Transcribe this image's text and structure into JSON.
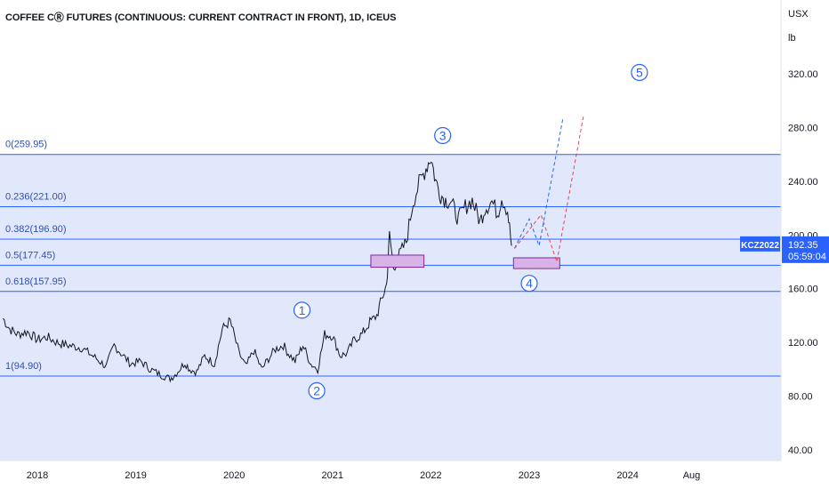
{
  "title": "COFFEE CⓇ FUTURES (CONTINUOUS: CURRENT CONTRACT IN FRONT), 1D, ICEUS",
  "price_axis": {
    "unit_top": "USX",
    "unit_bottom": "lb",
    "ticks": [
      "320.00",
      "280.00",
      "240.00",
      "200.00",
      "160.00",
      "120.00",
      "80.00",
      "40.00"
    ]
  },
  "time_axis": {
    "labels": [
      "2018",
      "2019",
      "2020",
      "2021",
      "2022",
      "2023",
      "2024",
      "Aug"
    ]
  },
  "price_tag": {
    "symbol": "KCZ2022",
    "price": "192.35",
    "countdown": "05:59:04",
    "color": "#2962ff"
  },
  "colors": {
    "fib_line": "#2962ff",
    "fib_band": "#e2e8fb",
    "fib_label": "#2f4fb0",
    "price_line": "#131722",
    "target_box_fill": "#d9b3e8",
    "target_box_stroke": "#7c2a9a",
    "projection_blue": "#2962ff",
    "projection_red": "#e0455a",
    "wave_label": "#2962ff"
  },
  "fib_levels": [
    {
      "label": "0(259.95)",
      "value": 259.95
    },
    {
      "label": "0.236(221.00)",
      "value": 221.0
    },
    {
      "label": "0.382(196.90)",
      "value": 196.9
    },
    {
      "label": "0.5(177.45)",
      "value": 177.45
    },
    {
      "label": "0.618(157.95)",
      "value": 157.95
    },
    {
      "label": "1(94.90)",
      "value": 94.9
    }
  ],
  "wave_labels": [
    "1",
    "2",
    "3",
    "4",
    "5"
  ],
  "chart_data": {
    "type": "line",
    "title": "COFFEE CⓇ FUTURES (CONTINUOUS: CURRENT CONTRACT IN FRONT), 1D, ICEUS",
    "xlabel": "",
    "ylabel": "",
    "ylim": [
      40,
      330
    ],
    "xlim": [
      2017.65,
      2025.0
    ],
    "x_unit": "year",
    "y_unit": "USX / lb",
    "grid": false,
    "series": [
      {
        "x": [
          2017.65,
          2017.72,
          2017.8,
          2017.9,
          2018.0,
          2018.1,
          2018.2,
          2018.3,
          2018.45,
          2018.6,
          2018.7,
          2018.78,
          2018.85,
          2018.95,
          2019.05,
          2019.15,
          2019.25,
          2019.35,
          2019.4,
          2019.5,
          2019.55,
          2019.62,
          2019.7,
          2019.8,
          2019.88,
          2019.96,
          2020.05,
          2020.12,
          2020.2,
          2020.28,
          2020.35,
          2020.42,
          2020.5,
          2020.55,
          2020.62,
          2020.7,
          2020.78,
          2020.85,
          2020.92,
          2021.0,
          2021.08,
          2021.15,
          2021.22,
          2021.3,
          2021.38,
          2021.45,
          2021.5,
          2021.55,
          2021.58,
          2021.62,
          2021.68,
          2021.75,
          2021.82,
          2021.88,
          2021.95,
          2022.0,
          2022.05,
          2022.1,
          2022.15,
          2022.2,
          2022.28,
          2022.35,
          2022.42,
          2022.5,
          2022.55,
          2022.62,
          2022.68,
          2022.72,
          2022.78,
          2022.82
        ],
        "y": [
          138,
          130,
          126,
          128,
          122,
          124,
          120,
          118,
          116,
          108,
          102,
          118,
          112,
          104,
          106,
          100,
          96,
          93,
          96,
          105,
          100,
          98,
          110,
          104,
          130,
          136,
          112,
          102,
          114,
          100,
          108,
          115,
          118,
          112,
          106,
          118,
          104,
          100,
          126,
          125,
          110,
          112,
          122,
          126,
          135,
          140,
          152,
          163,
          200,
          176,
          185,
          195,
          225,
          238,
          250,
          258,
          240,
          230,
          226,
          225,
          212,
          221,
          226,
          210,
          220,
          225,
          216,
          228,
          218,
          192
        ]
      }
    ],
    "annotations": {
      "fib_levels": [
        {
          "ratio": "0",
          "value": 259.95
        },
        {
          "ratio": "0.236",
          "value": 221.0
        },
        {
          "ratio": "0.382",
          "value": 196.9
        },
        {
          "ratio": "0.5",
          "value": 177.45
        },
        {
          "ratio": "0.618",
          "value": 157.95
        },
        {
          "ratio": "1",
          "value": 94.9
        }
      ],
      "target_boxes": [
        {
          "x0": 2021.39,
          "x1": 2021.93,
          "y0": 176,
          "y1": 185
        },
        {
          "x0": 2022.84,
          "x1": 2023.31,
          "y0": 175,
          "y1": 183
        }
      ],
      "waves": [
        {
          "label": "1",
          "x": 2020.69,
          "y": 144
        },
        {
          "label": "2",
          "x": 2020.84,
          "y": 84
        },
        {
          "label": "3",
          "x": 2022.12,
          "y": 274
        },
        {
          "label": "4",
          "x": 2023.0,
          "y": 164
        },
        {
          "label": "5",
          "x": 2024.12,
          "y": 321
        }
      ],
      "projections": [
        {
          "color": "blue",
          "points": [
            [
              2022.85,
              190
            ],
            [
              2023.0,
              212
            ],
            [
              2023.1,
              192
            ],
            [
              2023.34,
              286
            ]
          ]
        },
        {
          "color": "red",
          "points": [
            [
              2022.85,
              190
            ],
            [
              2023.12,
              215
            ],
            [
              2023.28,
              180
            ],
            [
              2023.55,
              288
            ]
          ]
        }
      ]
    }
  }
}
